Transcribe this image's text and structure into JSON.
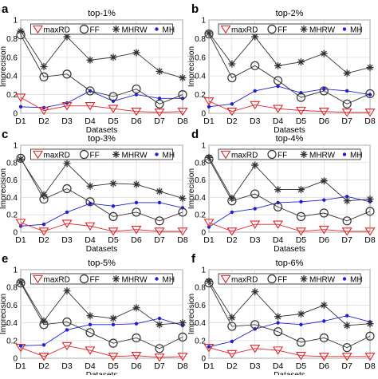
{
  "figure": {
    "legend_labels": [
      "maxRD",
      "FF",
      "MHRW",
      "MH"
    ],
    "ylabel": "Imprecision",
    "xlabel": "Datasets"
  },
  "series_styles": {
    "maxRD": {
      "color": "#e0262b",
      "marker": "triangle-down-open"
    },
    "FF": {
      "color": "#333333",
      "marker": "circle-open"
    },
    "MHRW": {
      "color": "#333333",
      "marker": "asterisk"
    },
    "MH": {
      "color": "#1f1fd6",
      "marker": "dot"
    }
  },
  "chart_data": [
    {
      "panel_letter": "a",
      "title": "top-1%",
      "type": "line",
      "categories": [
        "D1",
        "D2",
        "D3",
        "D4",
        "D5",
        "D6",
        "D7",
        "D8"
      ],
      "ylim": [
        0,
        1
      ],
      "yticks": [
        0,
        0.2,
        0.4,
        0.6,
        0.8,
        1
      ],
      "grid": true,
      "legend_placement": "top",
      "xlabel": "Datasets",
      "ylabel": "Imprecision",
      "series": [
        {
          "name": "maxRD",
          "values": [
            0.17,
            0.03,
            0.08,
            0.08,
            0.05,
            0.02,
            0.01,
            0.02
          ]
        },
        {
          "name": "FF",
          "values": [
            0.84,
            0.39,
            0.42,
            0.24,
            0.18,
            0.26,
            0.1,
            0.2
          ]
        },
        {
          "name": "MHRW",
          "values": [
            0.88,
            0.5,
            0.82,
            0.57,
            0.6,
            0.65,
            0.45,
            0.38
          ]
        },
        {
          "name": "MH",
          "values": [
            0.07,
            0.06,
            0.11,
            0.24,
            0.13,
            0.2,
            0.16,
            0.16
          ]
        }
      ]
    },
    {
      "panel_letter": "b",
      "title": "top-2%",
      "type": "line",
      "categories": [
        "D1",
        "D2",
        "D3",
        "D4",
        "D5",
        "D6",
        "D7",
        "D8"
      ],
      "ylim": [
        0,
        1
      ],
      "yticks": [
        0,
        0.2,
        0.4,
        0.6,
        0.8,
        1
      ],
      "grid": true,
      "legend_placement": "top",
      "xlabel": "Datasets",
      "ylabel": "Imprecision",
      "series": [
        {
          "name": "maxRD",
          "values": [
            0.13,
            0.02,
            0.09,
            0.05,
            0.03,
            0.02,
            0.01,
            0.01
          ]
        },
        {
          "name": "FF",
          "values": [
            0.85,
            0.38,
            0.51,
            0.35,
            0.17,
            0.24,
            0.1,
            0.21
          ]
        },
        {
          "name": "MHRW",
          "values": [
            0.86,
            0.53,
            0.82,
            0.51,
            0.55,
            0.64,
            0.43,
            0.49
          ]
        },
        {
          "name": "MH",
          "values": [
            0.07,
            0.1,
            0.24,
            0.29,
            0.22,
            0.26,
            0.24,
            0.2
          ]
        }
      ]
    },
    {
      "panel_letter": "c",
      "title": "top-3%",
      "type": "line",
      "categories": [
        "D1",
        "D2",
        "D3",
        "D4",
        "D5",
        "D6",
        "D7",
        "D8"
      ],
      "ylim": [
        0,
        1
      ],
      "yticks": [
        0,
        0.2,
        0.4,
        0.6,
        0.8,
        1
      ],
      "grid": true,
      "legend_placement": "top",
      "xlabel": "Datasets",
      "ylabel": "Imprecision",
      "series": [
        {
          "name": "maxRD",
          "values": [
            0.11,
            0.01,
            0.1,
            0.07,
            0.01,
            0.03,
            0.01,
            0.01
          ]
        },
        {
          "name": "FF",
          "values": [
            0.85,
            0.38,
            0.5,
            0.35,
            0.18,
            0.23,
            0.13,
            0.23
          ]
        },
        {
          "name": "MHRW",
          "values": [
            0.84,
            0.43,
            0.79,
            0.53,
            0.56,
            0.55,
            0.47,
            0.39
          ]
        },
        {
          "name": "MH",
          "values": [
            0.07,
            0.09,
            0.23,
            0.33,
            0.3,
            0.34,
            0.34,
            0.28
          ]
        }
      ]
    },
    {
      "panel_letter": "d",
      "title": "top-4%",
      "type": "line",
      "categories": [
        "D1",
        "D2",
        "D3",
        "D4",
        "D5",
        "D6",
        "D7",
        "D8"
      ],
      "ylim": [
        0,
        1
      ],
      "yticks": [
        0,
        0.2,
        0.4,
        0.6,
        0.8,
        1
      ],
      "grid": true,
      "legend_placement": "top",
      "xlabel": "Datasets",
      "ylabel": "Imprecision",
      "series": [
        {
          "name": "maxRD",
          "values": [
            0.11,
            0.01,
            0.09,
            0.09,
            0.01,
            0.03,
            0.01,
            0.01
          ]
        },
        {
          "name": "FF",
          "values": [
            0.84,
            0.36,
            0.44,
            0.29,
            0.18,
            0.22,
            0.13,
            0.24
          ]
        },
        {
          "name": "MHRW",
          "values": [
            0.86,
            0.39,
            0.77,
            0.49,
            0.49,
            0.59,
            0.36,
            0.38
          ]
        },
        {
          "name": "MH",
          "values": [
            0.06,
            0.23,
            0.27,
            0.34,
            0.35,
            0.37,
            0.41,
            0.35
          ]
        }
      ]
    },
    {
      "panel_letter": "e",
      "title": "top-5%",
      "type": "line",
      "categories": [
        "D1",
        "D2",
        "D3",
        "D4",
        "D5",
        "D6",
        "D7",
        "D8"
      ],
      "ylim": [
        0,
        1
      ],
      "yticks": [
        0,
        0.2,
        0.4,
        0.6,
        0.8,
        1
      ],
      "grid": true,
      "legend_placement": "top",
      "xlabel": "Datasets",
      "ylabel": "Imprecision",
      "series": [
        {
          "name": "maxRD",
          "values": [
            0.12,
            0.02,
            0.14,
            0.09,
            0.02,
            0.03,
            0.01,
            0.02
          ]
        },
        {
          "name": "FF",
          "values": [
            0.85,
            0.38,
            0.41,
            0.29,
            0.17,
            0.23,
            0.11,
            0.24
          ]
        },
        {
          "name": "MHRW",
          "values": [
            0.86,
            0.42,
            0.76,
            0.48,
            0.45,
            0.57,
            0.38,
            0.4
          ]
        },
        {
          "name": "MH",
          "values": [
            0.14,
            0.15,
            0.32,
            0.38,
            0.38,
            0.39,
            0.45,
            0.37
          ]
        }
      ]
    },
    {
      "panel_letter": "f",
      "title": "top-6%",
      "type": "line",
      "categories": [
        "D1",
        "D2",
        "D3",
        "D4",
        "D5",
        "D6",
        "D7",
        "D8"
      ],
      "ylim": [
        0,
        1
      ],
      "yticks": [
        0,
        0.2,
        0.4,
        0.6,
        0.8,
        1
      ],
      "grid": true,
      "legend_placement": "top",
      "xlabel": "Datasets",
      "ylabel": "Imprecision",
      "series": [
        {
          "name": "maxRD",
          "values": [
            0.12,
            0.05,
            0.11,
            0.09,
            0.03,
            0.02,
            0.02,
            0.02
          ]
        },
        {
          "name": "FF",
          "values": [
            0.85,
            0.36,
            0.38,
            0.3,
            0.18,
            0.23,
            0.12,
            0.25
          ]
        },
        {
          "name": "MHRW",
          "values": [
            0.87,
            0.46,
            0.75,
            0.47,
            0.5,
            0.6,
            0.37,
            0.39
          ]
        },
        {
          "name": "MH",
          "values": [
            0.13,
            0.19,
            0.33,
            0.4,
            0.38,
            0.42,
            0.48,
            0.41
          ]
        }
      ]
    }
  ]
}
